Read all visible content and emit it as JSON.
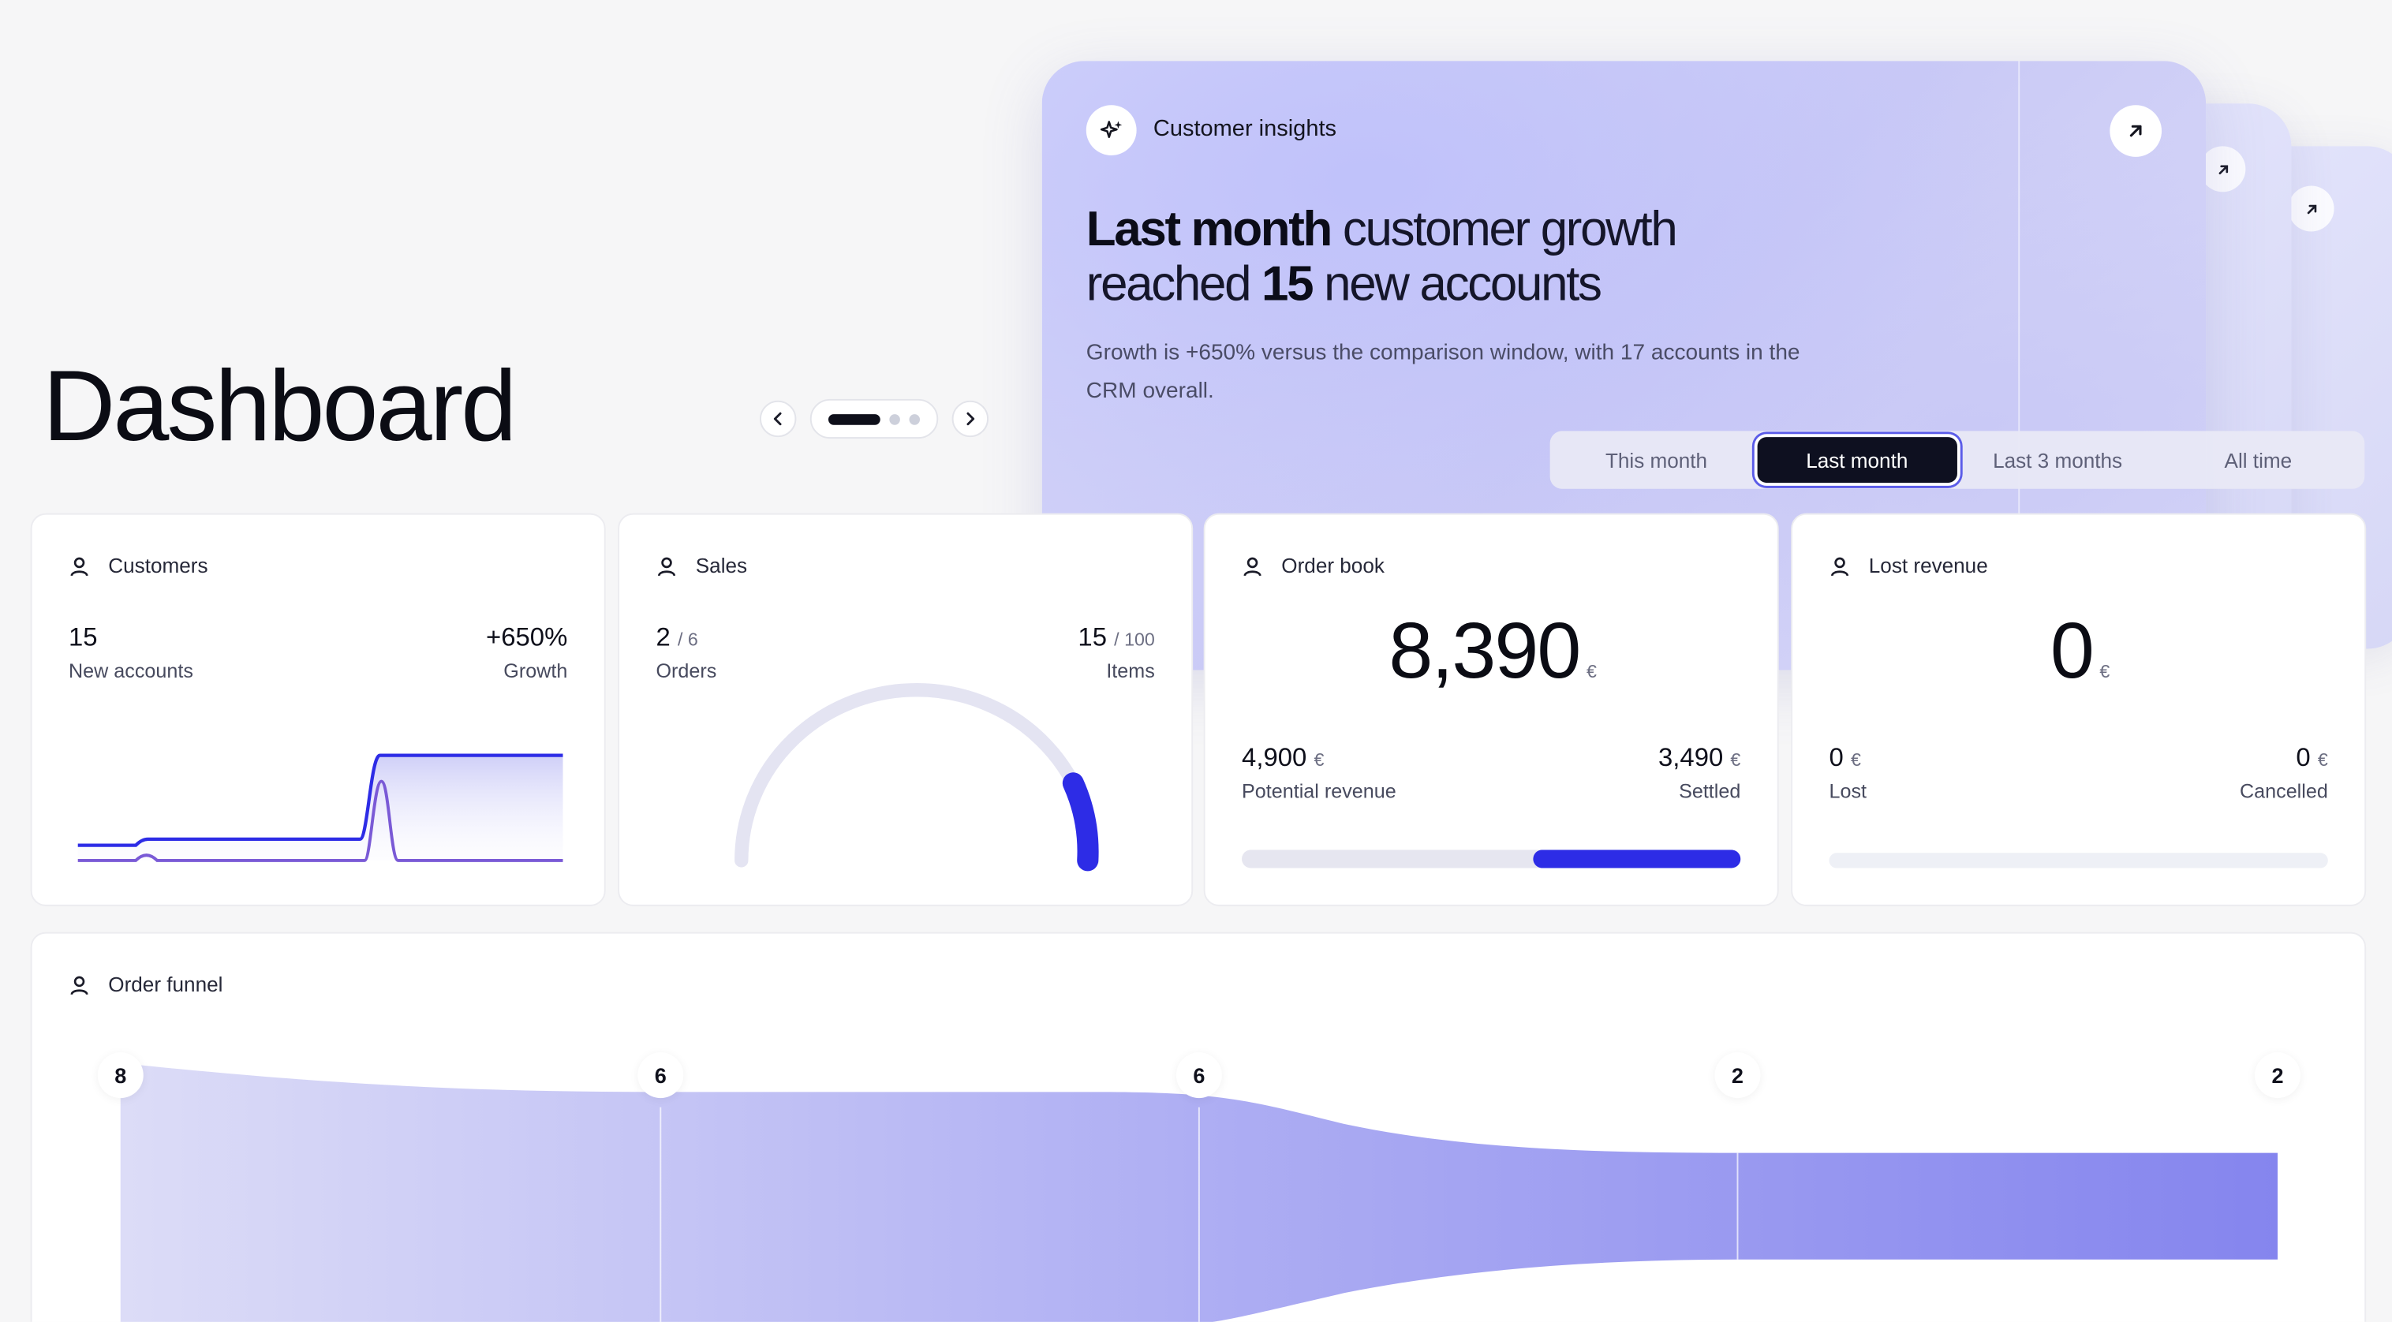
{
  "page": {
    "title": "Dashboard"
  },
  "carousel": {
    "prev_icon": "chevron-left-icon",
    "next_icon": "chevron-right-icon",
    "slides": 3,
    "active": 0
  },
  "insight": {
    "label": "Customer insights",
    "headline": {
      "p1_bold": "Last month",
      "p2": " customer growth reached ",
      "p3_bold": "15",
      "p4": " new accounts"
    },
    "description": "Growth is +650% versus the comparison window, with 17 accounts in the CRM overall.",
    "icon": "sparkle-icon",
    "open_icon": "arrow-up-right-icon"
  },
  "period_tabs": {
    "options": [
      "This month",
      "Last month",
      "Last 3 months",
      "All time"
    ],
    "selected": "Last month"
  },
  "cards": {
    "customers": {
      "title": "Customers",
      "icon": "user-icon",
      "left_value": "15",
      "left_label": "New accounts",
      "right_value": "+650%",
      "right_label": "Growth"
    },
    "sales": {
      "title": "Sales",
      "icon": "user-icon",
      "left_value": "2",
      "left_total": "/ 6",
      "left_label": "Orders",
      "right_value": "15",
      "right_total": "/ 100",
      "right_label": "Items",
      "gauge_fraction": 0.15
    },
    "order_book": {
      "title": "Order book",
      "icon": "user-icon",
      "total": "8,390",
      "currency": "€",
      "left_value": "4,900",
      "left_label": "Potential revenue",
      "right_value": "3,490",
      "right_label": "Settled",
      "settled_fraction": 0.416
    },
    "lost_revenue": {
      "title": "Lost revenue",
      "icon": "user-icon",
      "total": "0",
      "currency": "€",
      "left_value": "0",
      "left_label": "Lost",
      "right_value": "0",
      "right_label": "Cancelled",
      "lost_fraction": 0
    }
  },
  "funnel": {
    "title": "Order funnel",
    "icon": "user-icon",
    "stages": [
      "8",
      "6",
      "6",
      "2",
      "2"
    ]
  },
  "colors": {
    "accent": "#2d2ce6",
    "dark": "#0e1020",
    "lavender": "#c9c9f6"
  }
}
